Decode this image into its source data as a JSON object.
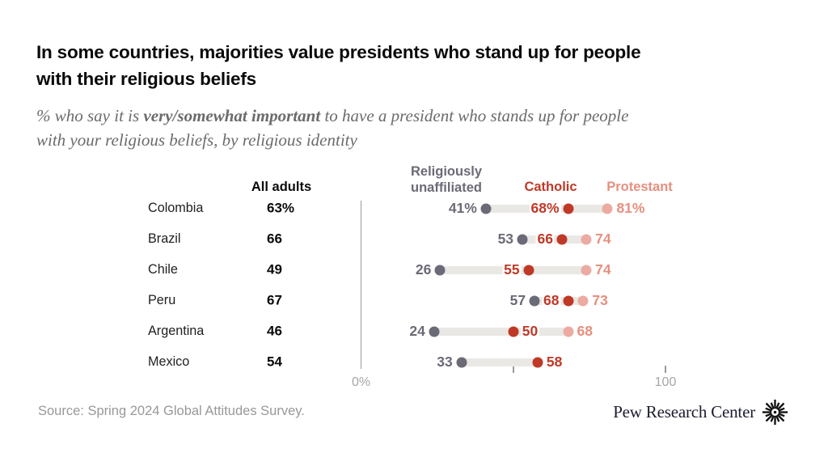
{
  "header": {
    "title_line1": "In some countries, majorities value presidents who stand up for people",
    "title_line2": "with their religious beliefs",
    "subtitle_line1_prefix": "% who say it is ",
    "subtitle_line1_bold": "very/somewhat important",
    "subtitle_line1_suffix": " to have a president who stands up for people",
    "subtitle_line2": "with your religious beliefs, by religious identity"
  },
  "chart_data": {
    "type": "dot-plot",
    "all_adults_header": "All adults",
    "legend": [
      {
        "name": "Religiously unaffiliated",
        "series_key": "unaffiliated"
      },
      {
        "name": "Catholic",
        "series_key": "catholic"
      },
      {
        "name": "Protestant",
        "series_key": "protestant"
      }
    ],
    "colors": {
      "unaffiliated": "#6b6a77",
      "catholic": "#bf3927",
      "protestant_text": "#e5907f",
      "protestant_dot": "#ecaba1",
      "bar": "#e9e8e5"
    },
    "axis": {
      "min": 0,
      "max": 100,
      "zero_label": "0%",
      "end_label": "100",
      "mid_tick_value": 50,
      "end_tick_value": 100,
      "grid": false
    },
    "rows": [
      {
        "country": "Colombia",
        "all_adults": "63%",
        "unaffiliated": {
          "value": 41,
          "label": "41%",
          "side": "left"
        },
        "catholic": {
          "value": 68,
          "label": "68%",
          "side": "left"
        },
        "protestant": {
          "value": 81,
          "label": "81%",
          "side": "right"
        }
      },
      {
        "country": "Brazil",
        "all_adults": "66",
        "unaffiliated": {
          "value": 53,
          "label": "53",
          "side": "left"
        },
        "catholic": {
          "value": 66,
          "label": "66",
          "side": "left"
        },
        "protestant": {
          "value": 74,
          "label": "74",
          "side": "right"
        }
      },
      {
        "country": "Chile",
        "all_adults": "49",
        "unaffiliated": {
          "value": 26,
          "label": "26",
          "side": "left"
        },
        "catholic": {
          "value": 55,
          "label": "55",
          "side": "left"
        },
        "protestant": {
          "value": 74,
          "label": "74",
          "side": "right"
        }
      },
      {
        "country": "Peru",
        "all_adults": "67",
        "unaffiliated": {
          "value": 57,
          "label": "57",
          "side": "left"
        },
        "catholic": {
          "value": 68,
          "label": "68",
          "side": "left"
        },
        "protestant": {
          "value": 73,
          "label": "73",
          "side": "right"
        }
      },
      {
        "country": "Argentina",
        "all_adults": "46",
        "unaffiliated": {
          "value": 24,
          "label": "24",
          "side": "left"
        },
        "catholic": {
          "value": 50,
          "label": "50",
          "side": "right"
        },
        "protestant": {
          "value": 68,
          "label": "68",
          "side": "right"
        }
      },
      {
        "country": "Mexico",
        "all_adults": "54",
        "unaffiliated": {
          "value": 33,
          "label": "33",
          "side": "left"
        },
        "catholic": {
          "value": 58,
          "label": "58",
          "side": "right"
        },
        "protestant": null
      }
    ]
  },
  "footer": {
    "source": "Source: Spring 2024 Global Attitudes Survey.",
    "brand": "Pew Research Center"
  }
}
